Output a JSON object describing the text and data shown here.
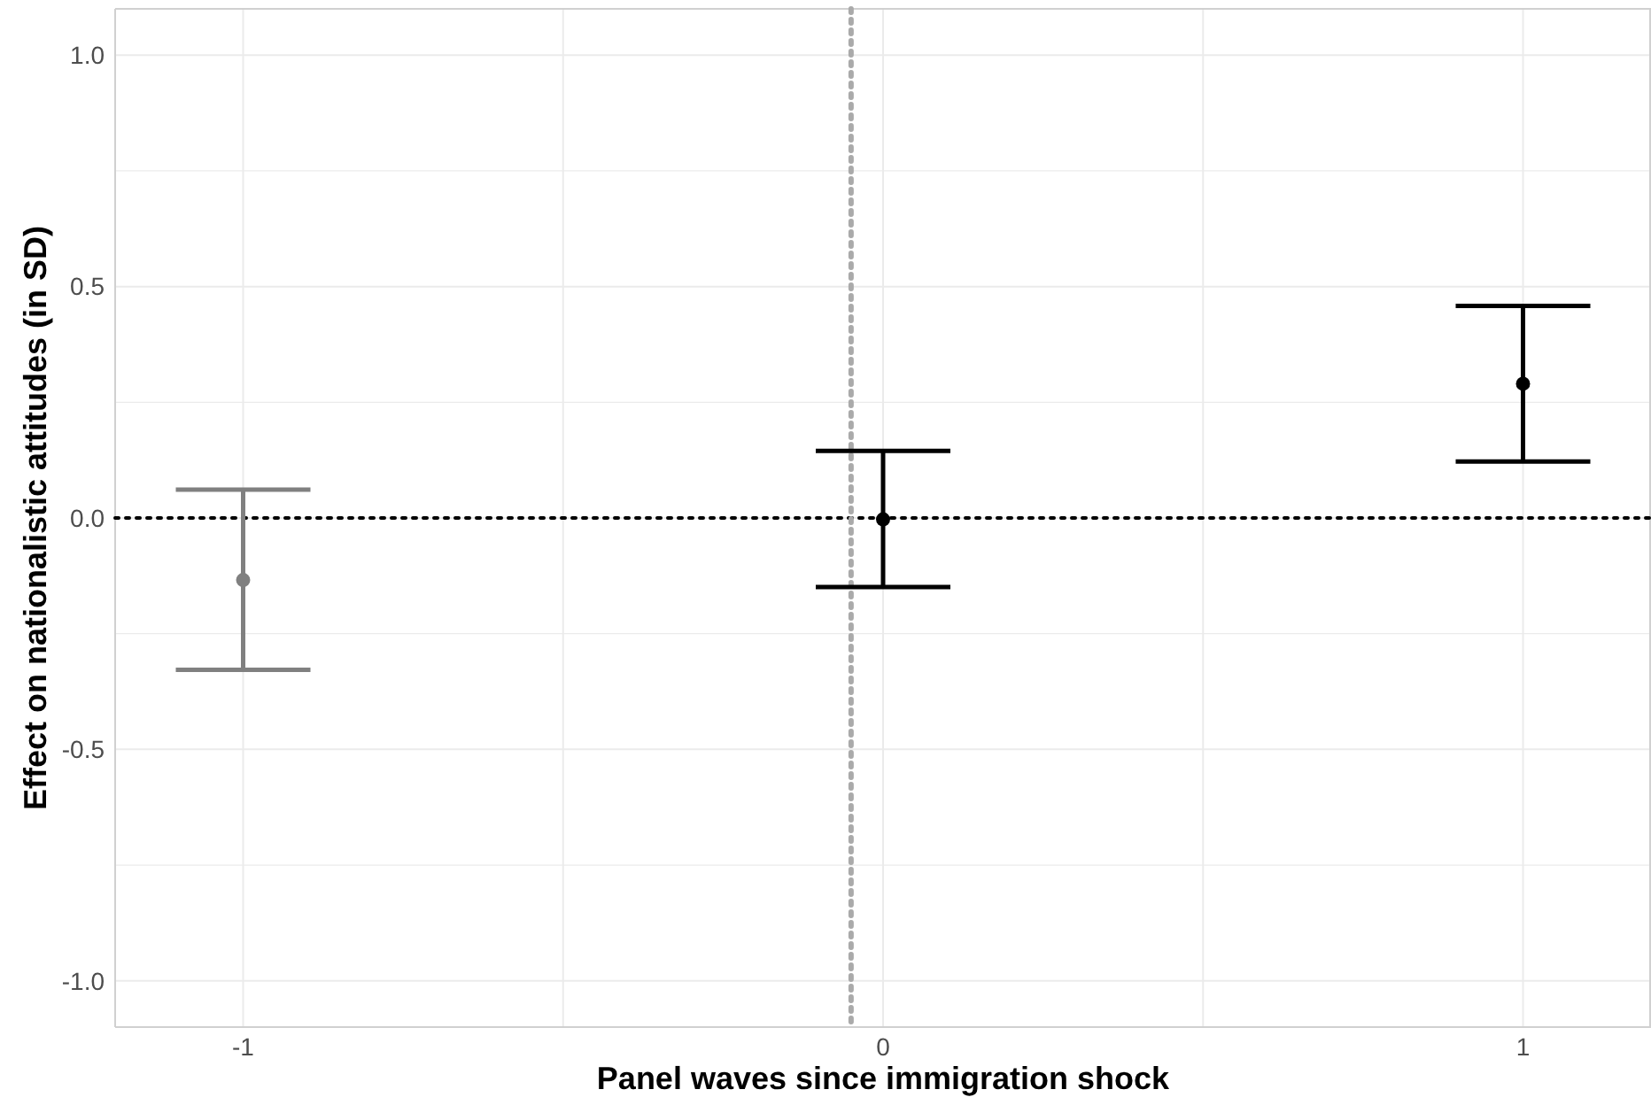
{
  "chart_data": {
    "type": "scatter",
    "xlabel": "Panel waves since immigration shock",
    "ylabel": "Effect on nationalistic attitudes (in SD)",
    "xlim": [
      -1.2,
      1.2
    ],
    "ylim": [
      -1.1,
      1.1
    ],
    "xticks": [
      -1,
      {
        "value": -0.5,
        "label": null
      },
      0,
      {
        "value": 0.5,
        "label": null
      },
      1
    ],
    "yticks": [
      {
        "value": -1,
        "label": "-1.0"
      },
      {
        "value": -0.75,
        "label": null
      },
      -0.5,
      {
        "value": -0.25,
        "label": null
      },
      {
        "value": 0,
        "label": "0.0"
      },
      {
        "value": 0.25,
        "label": null
      },
      0.5,
      {
        "value": 0.75,
        "label": null
      },
      {
        "value": 1,
        "label": "1.0"
      }
    ],
    "grid": true,
    "marker": "circle",
    "series": [
      {
        "x": [
          -1,
          0,
          1
        ],
        "values": [
          -0.134,
          -0.003,
          0.29
        ],
        "errors": [
          [
            -0.328,
            0.061
          ],
          [
            -0.149,
            0.145
          ],
          [
            0.122,
            0.458
          ]
        ],
        "colors": [
          "#808080",
          "#000000",
          "#000000"
        ]
      }
    ],
    "ref_lines": [
      {
        "axis": "y",
        "value": 0,
        "color": "#000000",
        "line_style": "dotted"
      },
      {
        "axis": "x",
        "value": -0.05,
        "color": "#aaaaaa",
        "line_style": "dotted"
      }
    ]
  }
}
